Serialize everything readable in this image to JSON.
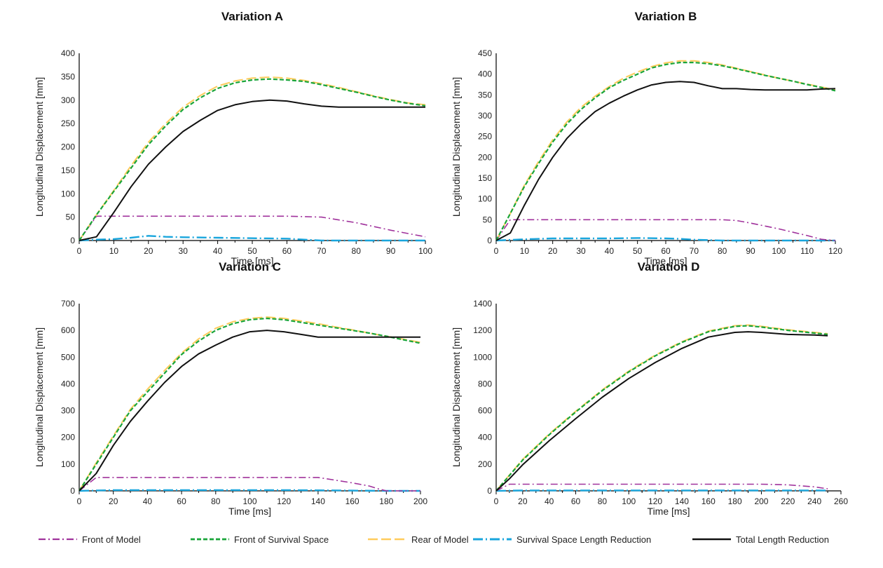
{
  "chart_data": [
    {
      "type": "line",
      "title": "Variation A",
      "xlabel": "Time  [ms]",
      "ylabel": "Longitudinal Displacement [mm]",
      "xlim": [
        0,
        100
      ],
      "ylim": [
        0,
        400
      ],
      "xticks": [
        0,
        10,
        20,
        30,
        40,
        50,
        60,
        70,
        80,
        90,
        100
      ],
      "yticks": [
        0,
        50,
        100,
        150,
        200,
        250,
        300,
        350,
        400
      ],
      "grid": false,
      "series": [
        {
          "name": "Front of Model",
          "x": [
            0,
            5,
            10,
            20,
            30,
            40,
            50,
            60,
            70,
            80,
            90,
            100
          ],
          "y": [
            0,
            52,
            52,
            52,
            52,
            52,
            52,
            52,
            50,
            38,
            22,
            8
          ]
        },
        {
          "name": "Front of Survival Space",
          "x": [
            0,
            5,
            10,
            15,
            20,
            25,
            30,
            35,
            40,
            45,
            50,
            55,
            60,
            65,
            70,
            75,
            80,
            85,
            90,
            95,
            100
          ],
          "y": [
            0,
            55,
            105,
            155,
            205,
            245,
            280,
            305,
            325,
            337,
            343,
            345,
            343,
            340,
            333,
            325,
            317,
            308,
            300,
            293,
            288
          ]
        },
        {
          "name": "Rear of Model",
          "x": [
            0,
            5,
            10,
            15,
            20,
            25,
            30,
            35,
            40,
            45,
            50,
            55,
            60,
            65,
            70,
            75,
            80,
            85,
            90,
            95,
            100
          ],
          "y": [
            0,
            55,
            107,
            160,
            210,
            250,
            285,
            310,
            330,
            341,
            347,
            349,
            347,
            342,
            335,
            327,
            318,
            309,
            301,
            294,
            290
          ]
        },
        {
          "name": "Survival Space Length Reduction",
          "x": [
            0,
            5,
            10,
            15,
            20,
            25,
            30,
            40,
            50,
            60,
            65,
            70,
            80,
            90,
            100
          ],
          "y": [
            0,
            2,
            3,
            6,
            10,
            8,
            7,
            6,
            5,
            4,
            2,
            0,
            0,
            0,
            0
          ]
        },
        {
          "name": "Total Length Reduction",
          "x": [
            0,
            5,
            10,
            15,
            20,
            25,
            30,
            35,
            40,
            45,
            50,
            55,
            60,
            65,
            70,
            75,
            80,
            85,
            90,
            95,
            100
          ],
          "y": [
            0,
            8,
            60,
            115,
            163,
            200,
            233,
            257,
            278,
            290,
            297,
            300,
            298,
            292,
            287,
            285,
            285,
            285,
            285,
            285,
            285
          ]
        }
      ]
    },
    {
      "type": "line",
      "title": "Variation B",
      "xlabel": "Time  [ms]",
      "ylabel": "Longitudinal Displacement [mm]",
      "xlim": [
        0,
        120
      ],
      "ylim": [
        0,
        450
      ],
      "xticks": [
        0,
        10,
        20,
        30,
        40,
        50,
        60,
        70,
        80,
        90,
        100,
        110,
        120
      ],
      "yticks": [
        0,
        50,
        100,
        150,
        200,
        250,
        300,
        350,
        400,
        450
      ],
      "grid": false,
      "series": [
        {
          "name": "Front of Model",
          "x": [
            0,
            5,
            10,
            20,
            30,
            40,
            50,
            60,
            70,
            80,
            85,
            90,
            100,
            110,
            115,
            120
          ],
          "y": [
            0,
            50,
            50,
            50,
            50,
            50,
            50,
            50,
            50,
            50,
            48,
            42,
            28,
            12,
            3,
            0
          ]
        },
        {
          "name": "Front of Survival Space",
          "x": [
            0,
            5,
            10,
            15,
            20,
            25,
            30,
            35,
            40,
            45,
            50,
            55,
            60,
            65,
            70,
            75,
            80,
            85,
            90,
            95,
            100,
            105,
            110,
            115,
            120
          ],
          "y": [
            0,
            65,
            130,
            185,
            237,
            280,
            315,
            343,
            367,
            385,
            400,
            415,
            423,
            428,
            428,
            425,
            420,
            413,
            405,
            397,
            390,
            383,
            375,
            368,
            360
          ]
        },
        {
          "name": "Rear of Model",
          "x": [
            0,
            5,
            10,
            15,
            20,
            25,
            30,
            35,
            40,
            45,
            50,
            55,
            60,
            65,
            70,
            75,
            80,
            85,
            90,
            95,
            100,
            105,
            110,
            115,
            120
          ],
          "y": [
            0,
            65,
            133,
            190,
            242,
            285,
            320,
            347,
            370,
            390,
            405,
            418,
            427,
            432,
            432,
            428,
            422,
            414,
            406,
            398,
            390,
            383,
            376,
            369,
            362
          ]
        },
        {
          "name": "Survival Space Length Reduction",
          "x": [
            0,
            10,
            20,
            30,
            40,
            50,
            60,
            65,
            70,
            80,
            90,
            100,
            110,
            120
          ],
          "y": [
            0,
            3,
            5,
            5,
            5,
            6,
            5,
            4,
            2,
            0,
            0,
            0,
            0,
            0
          ]
        },
        {
          "name": "Total Length Reduction",
          "x": [
            0,
            5,
            10,
            15,
            20,
            25,
            30,
            35,
            40,
            45,
            50,
            55,
            60,
            65,
            70,
            75,
            80,
            85,
            90,
            95,
            100,
            105,
            110,
            115,
            120
          ],
          "y": [
            0,
            18,
            85,
            147,
            200,
            245,
            280,
            310,
            330,
            347,
            362,
            374,
            380,
            382,
            380,
            372,
            365,
            365,
            363,
            362,
            362,
            362,
            362,
            364,
            365
          ]
        }
      ]
    },
    {
      "type": "line",
      "title": "Variation C",
      "xlabel": "Time [ms]",
      "ylabel": "Longitudinal Displacement [mm]",
      "xlim": [
        0,
        200
      ],
      "ylim": [
        0,
        700
      ],
      "xticks": [
        0,
        20,
        40,
        60,
        80,
        100,
        120,
        140,
        160,
        180,
        200
      ],
      "yticks": [
        0,
        100,
        200,
        300,
        400,
        500,
        600,
        700
      ],
      "grid": false,
      "series": [
        {
          "name": "Front of Model",
          "x": [
            0,
            10,
            20,
            40,
            60,
            80,
            100,
            120,
            140,
            150,
            160,
            170,
            175,
            180,
            200
          ],
          "y": [
            0,
            50,
            50,
            50,
            50,
            50,
            50,
            50,
            50,
            40,
            30,
            18,
            8,
            0,
            0
          ]
        },
        {
          "name": "Front of Survival Space",
          "x": [
            0,
            10,
            20,
            30,
            40,
            50,
            60,
            70,
            80,
            90,
            100,
            110,
            120,
            130,
            140,
            150,
            160,
            170,
            180,
            190,
            200
          ],
          "y": [
            0,
            100,
            200,
            300,
            370,
            440,
            510,
            560,
            600,
            625,
            640,
            645,
            640,
            630,
            620,
            610,
            600,
            590,
            578,
            565,
            552
          ]
        },
        {
          "name": "Rear of Model",
          "x": [
            0,
            10,
            20,
            30,
            40,
            50,
            60,
            70,
            80,
            90,
            100,
            110,
            120,
            130,
            140,
            150,
            160,
            170,
            180,
            190,
            200
          ],
          "y": [
            0,
            105,
            205,
            305,
            380,
            450,
            515,
            568,
            608,
            632,
            645,
            650,
            645,
            635,
            625,
            613,
            602,
            590,
            578,
            567,
            555
          ]
        },
        {
          "name": "Survival Space Length Reduction",
          "x": [
            0,
            20,
            40,
            60,
            80,
            100,
            120,
            140,
            160,
            180,
            200
          ],
          "y": [
            0,
            3,
            3,
            3,
            3,
            3,
            3,
            2,
            1,
            0,
            0
          ]
        },
        {
          "name": "Total Length Reduction",
          "x": [
            0,
            10,
            20,
            30,
            40,
            50,
            60,
            70,
            80,
            90,
            100,
            110,
            120,
            130,
            140,
            150,
            160,
            170,
            180,
            190,
            200
          ],
          "y": [
            0,
            65,
            170,
            260,
            335,
            405,
            465,
            512,
            545,
            575,
            595,
            600,
            595,
            585,
            575,
            575,
            575,
            575,
            575,
            575,
            575
          ]
        }
      ]
    },
    {
      "type": "line",
      "title": "Variation D",
      "xlabel": "Time  [ms]",
      "ylabel": "Longitudinal Displacement [mm]",
      "xlim": [
        0,
        260
      ],
      "ylim": [
        0,
        1400
      ],
      "xticks": [
        0,
        20,
        40,
        60,
        80,
        100,
        120,
        140,
        160,
        180,
        200,
        220,
        240,
        260
      ],
      "yticks": [
        0,
        200,
        400,
        600,
        800,
        1000,
        1200,
        1400
      ],
      "grid": false,
      "series": [
        {
          "name": "Front of Model",
          "x": [
            0,
            10,
            20,
            40,
            60,
            80,
            100,
            120,
            140,
            160,
            180,
            200,
            220,
            240,
            250
          ],
          "y": [
            0,
            50,
            50,
            50,
            50,
            50,
            50,
            50,
            50,
            50,
            50,
            50,
            45,
            30,
            15
          ]
        },
        {
          "name": "Front of Survival Space",
          "x": [
            0,
            10,
            20,
            40,
            60,
            80,
            100,
            120,
            140,
            160,
            180,
            190,
            200,
            220,
            240,
            250
          ],
          "y": [
            0,
            115,
            230,
            420,
            590,
            750,
            890,
            1010,
            1110,
            1190,
            1230,
            1235,
            1225,
            1200,
            1180,
            1170
          ]
        },
        {
          "name": "Rear of Model",
          "x": [
            0,
            10,
            20,
            40,
            60,
            80,
            100,
            120,
            140,
            160,
            180,
            190,
            200,
            220,
            240,
            250
          ],
          "y": [
            0,
            118,
            235,
            425,
            595,
            755,
            895,
            1015,
            1115,
            1195,
            1235,
            1240,
            1230,
            1205,
            1185,
            1175
          ]
        },
        {
          "name": "Survival Space Length Reduction",
          "x": [
            0,
            20,
            40,
            80,
            120,
            160,
            200,
            240,
            250
          ],
          "y": [
            0,
            3,
            3,
            3,
            3,
            3,
            3,
            3,
            3
          ]
        },
        {
          "name": "Total Length Reduction",
          "x": [
            0,
            10,
            20,
            40,
            60,
            80,
            100,
            120,
            140,
            160,
            180,
            190,
            200,
            220,
            240,
            250
          ],
          "y": [
            0,
            90,
            195,
            375,
            540,
            700,
            840,
            960,
            1065,
            1150,
            1185,
            1190,
            1185,
            1170,
            1165,
            1160
          ]
        }
      ]
    }
  ],
  "legend": {
    "placement": "bottom",
    "items": [
      {
        "label": "Front of Model",
        "color": "#a0329c",
        "dash": "dash-dot"
      },
      {
        "label": "Front of Survival Space",
        "color": "#1aa53a",
        "dash": "dashed"
      },
      {
        "label": "Rear of Model",
        "color": "#ffcc5c",
        "dash": "long-dash"
      },
      {
        "label": "Survival Space Length Reduction",
        "color": "#19a5dc",
        "dash": "long-dash-dot"
      },
      {
        "label": "Total Length Reduction",
        "color": "#111111",
        "dash": "solid"
      }
    ]
  }
}
